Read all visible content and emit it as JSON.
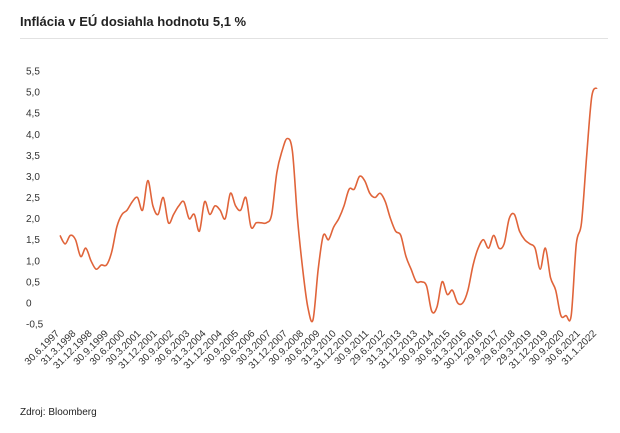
{
  "title": "Inflácia v EÚ dosiahla hodnotu 5,1 %",
  "source": "Zdroj: Bloomberg",
  "line_color": "#e0643a",
  "chart_data": {
    "type": "line",
    "title": "Inflácia v EÚ dosiahla hodnotu 5,1 %",
    "xlabel": "",
    "ylabel": "",
    "ylim": [
      -0.5,
      5.5
    ],
    "grid": false,
    "legend": "none",
    "y_ticks": [
      "-0,5",
      "0",
      "0,5",
      "1,0",
      "1,5",
      "2,0",
      "2,5",
      "3,0",
      "3,5",
      "4,0",
      "4,5",
      "5,0",
      "5,5"
    ],
    "y_tick_values": [
      -0.5,
      0,
      0.5,
      1.0,
      1.5,
      2.0,
      2.5,
      3.0,
      3.5,
      4.0,
      4.5,
      5.0,
      5.5
    ],
    "x_tick_labels": [
      "30.6.1997",
      "31.3.1998",
      "31.12.1998",
      "30.9.1999",
      "30.6.2000",
      "30.3.2001",
      "31.12.2001",
      "30.9.2002",
      "30.6.2003",
      "31.3.2004",
      "31.12.2004",
      "30.9.2005",
      "30.6.2006",
      "30.3.2007",
      "31.12.2007",
      "30.9.2008",
      "30.6.2009",
      "31.3.2010",
      "31.12.2010",
      "30.9.2011",
      "29.6.2012",
      "31.3.2013",
      "31.12.2013",
      "30.9.2014",
      "30.6.2015",
      "31.3.2016",
      "30.12.2016",
      "29.9.2017",
      "29.6.2018",
      "29.3.2019",
      "31.12.2019",
      "30.9.2020",
      "30.6.2021",
      "31.1.2022"
    ],
    "series": [
      {
        "values": [
          1.6,
          1.4,
          1.6,
          1.5,
          1.1,
          1.3,
          1.0,
          0.8,
          0.9,
          0.9,
          1.2,
          1.8,
          2.1,
          2.2,
          2.4,
          2.5,
          2.2,
          2.9,
          2.3,
          2.1,
          2.5,
          1.9,
          2.1,
          2.3,
          2.4,
          2.0,
          2.1,
          1.7,
          2.4,
          2.1,
          2.3,
          2.2,
          2.0,
          2.6,
          2.3,
          2.2,
          2.5,
          1.8,
          1.9,
          1.9,
          1.9,
          2.1,
          3.1,
          3.6,
          3.9,
          3.6,
          2.0,
          0.8,
          -0.1,
          -0.4,
          0.8,
          1.6,
          1.5,
          1.8,
          2.0,
          2.3,
          2.7,
          2.7,
          3.0,
          2.9,
          2.6,
          2.5,
          2.6,
          2.4,
          2.0,
          1.7,
          1.6,
          1.1,
          0.8,
          0.5,
          0.5,
          0.4,
          -0.2,
          -0.1,
          0.5,
          0.2,
          0.3,
          0.0,
          0.0,
          0.3,
          0.9,
          1.3,
          1.5,
          1.3,
          1.6,
          1.3,
          1.4,
          2.0,
          2.1,
          1.7,
          1.5,
          1.4,
          1.3,
          0.8,
          1.3,
          0.6,
          0.3,
          -0.3,
          -0.3,
          -0.3,
          1.4,
          1.9,
          3.5,
          4.9,
          5.1
        ]
      }
    ]
  }
}
